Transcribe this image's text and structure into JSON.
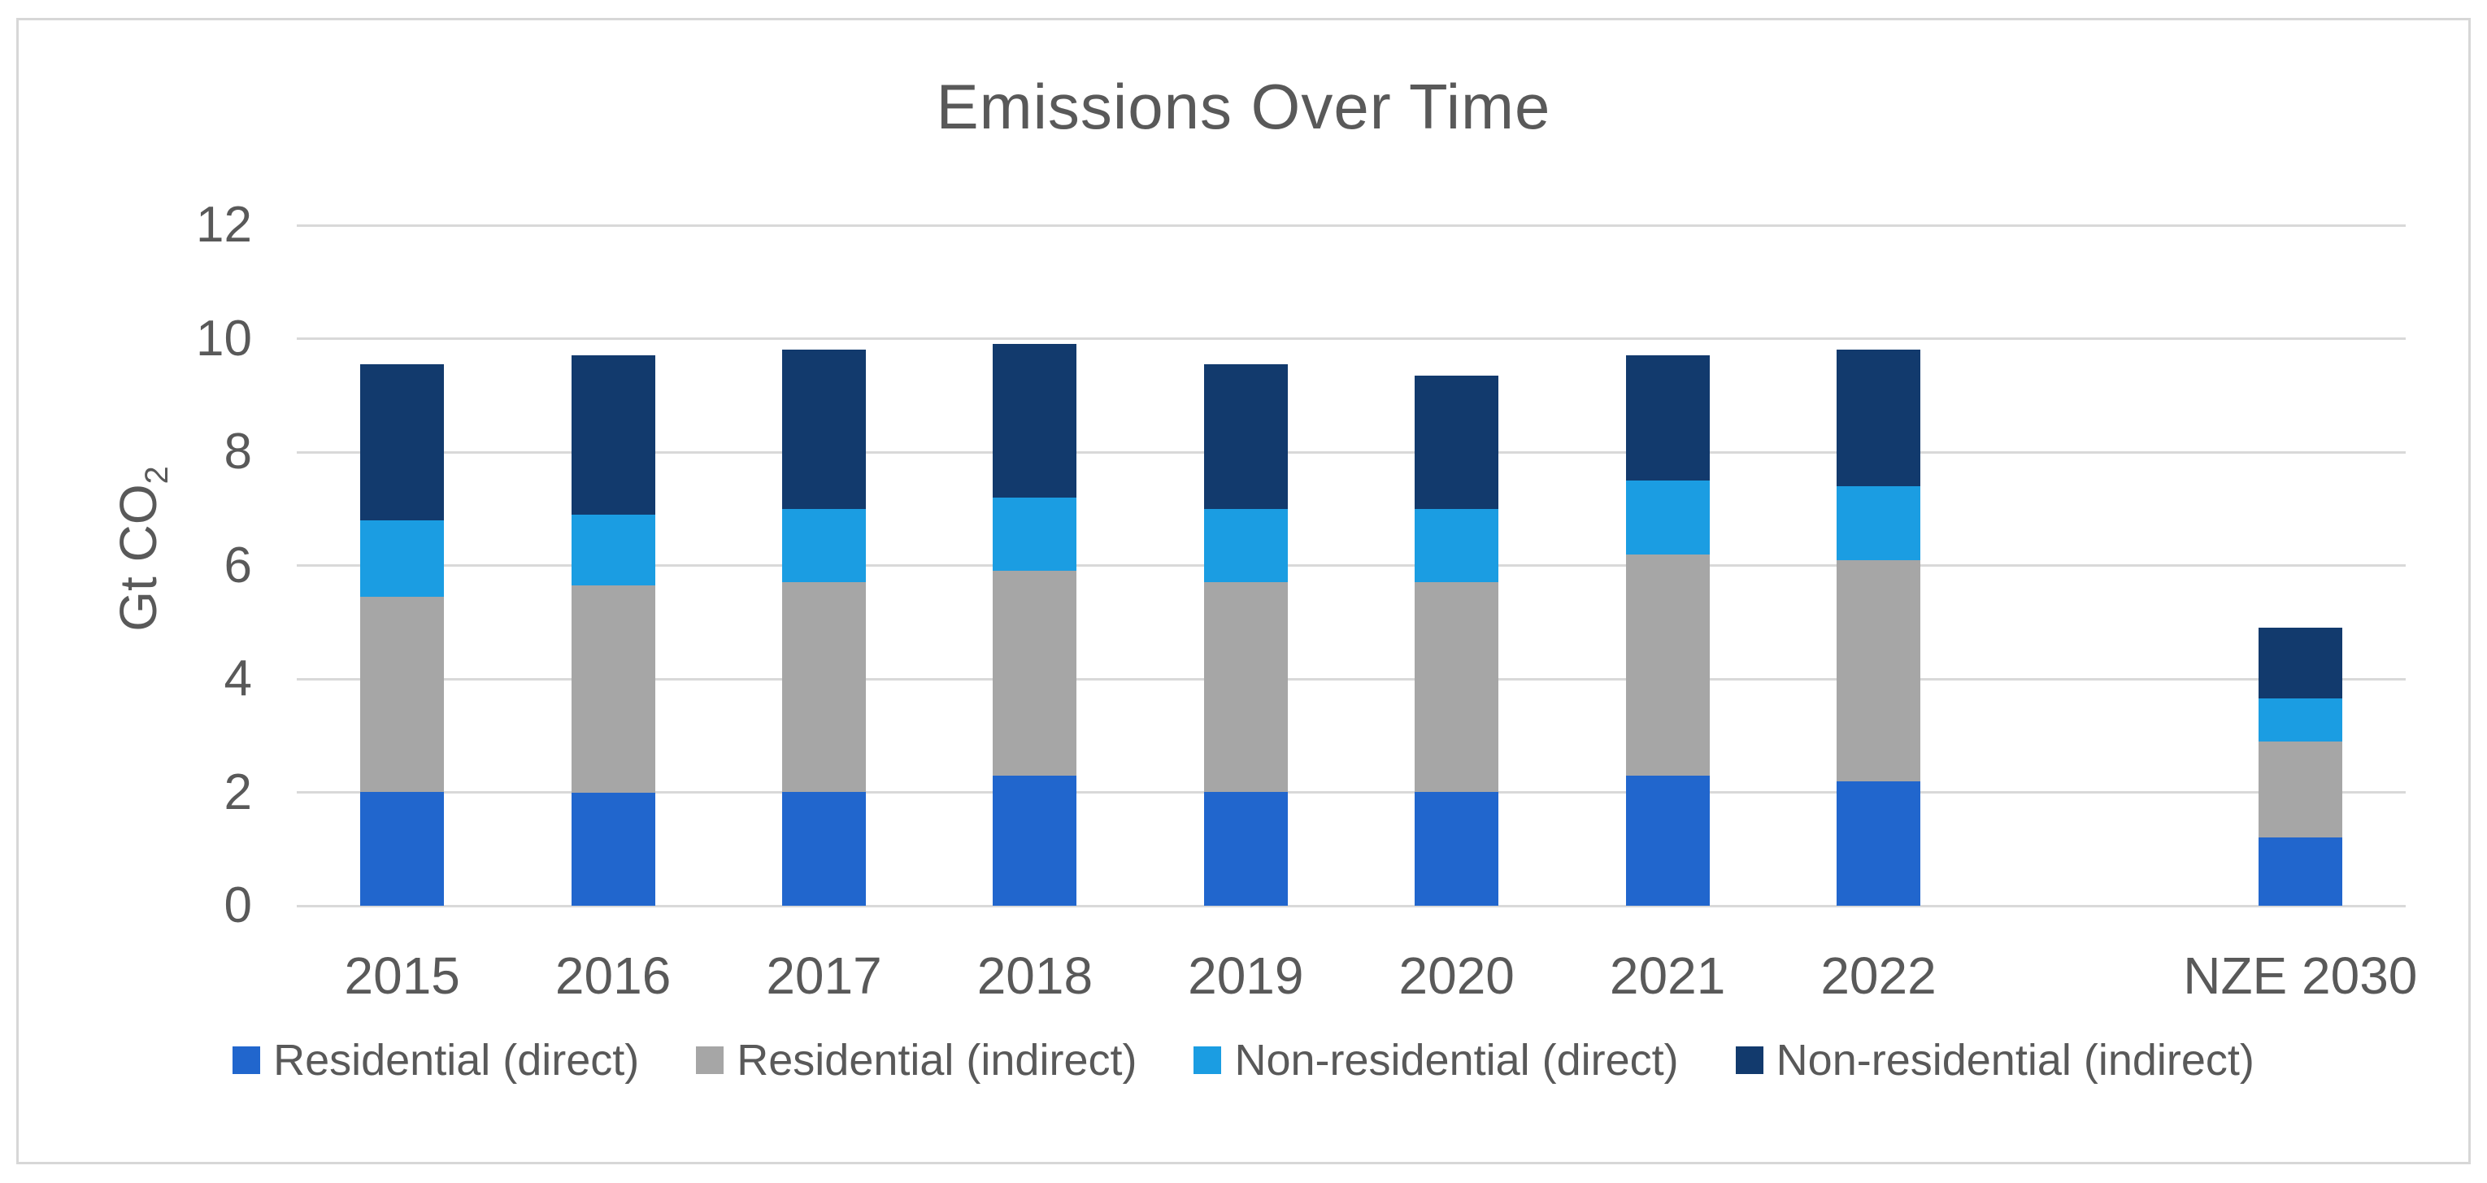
{
  "chart_data": {
    "type": "bar",
    "stacked": true,
    "title": "Emissions Over Time",
    "ylabel": "Gt CO2",
    "ylabel_main": "Gt CO",
    "ylabel_sub": "2",
    "categories": [
      "2015",
      "2016",
      "2017",
      "2018",
      "2019",
      "2020",
      "2021",
      "2022",
      "",
      "NZE 2030"
    ],
    "series": [
      {
        "name": "Residential (direct)",
        "color": "#2166cd",
        "values": [
          2.0,
          2.0,
          2.0,
          2.3,
          2.0,
          2.0,
          2.3,
          2.2,
          0,
          1.2
        ]
      },
      {
        "name": "Residential (indirect)",
        "color": "#a6a6a6",
        "values": [
          3.45,
          3.65,
          3.7,
          3.6,
          3.7,
          3.7,
          3.9,
          3.9,
          0,
          1.7
        ]
      },
      {
        "name": "Non-residential (direct)",
        "color": "#1b9de2",
        "values": [
          1.35,
          1.25,
          1.3,
          1.3,
          1.3,
          1.3,
          1.3,
          1.3,
          0,
          0.75
        ]
      },
      {
        "name": "Non-residential (indirect)",
        "color": "#123a6d",
        "values": [
          2.75,
          2.8,
          2.8,
          2.7,
          2.55,
          2.35,
          2.2,
          2.4,
          0,
          1.25
        ]
      }
    ],
    "ylim": [
      0,
      12
    ],
    "yticks": [
      0,
      2,
      4,
      6,
      8,
      10,
      12
    ],
    "grid": true,
    "legend_position": "bottom",
    "gridline_color": "#d9d9d9",
    "text_color": "#595959",
    "frame_border_color": "#d7d7d7"
  }
}
